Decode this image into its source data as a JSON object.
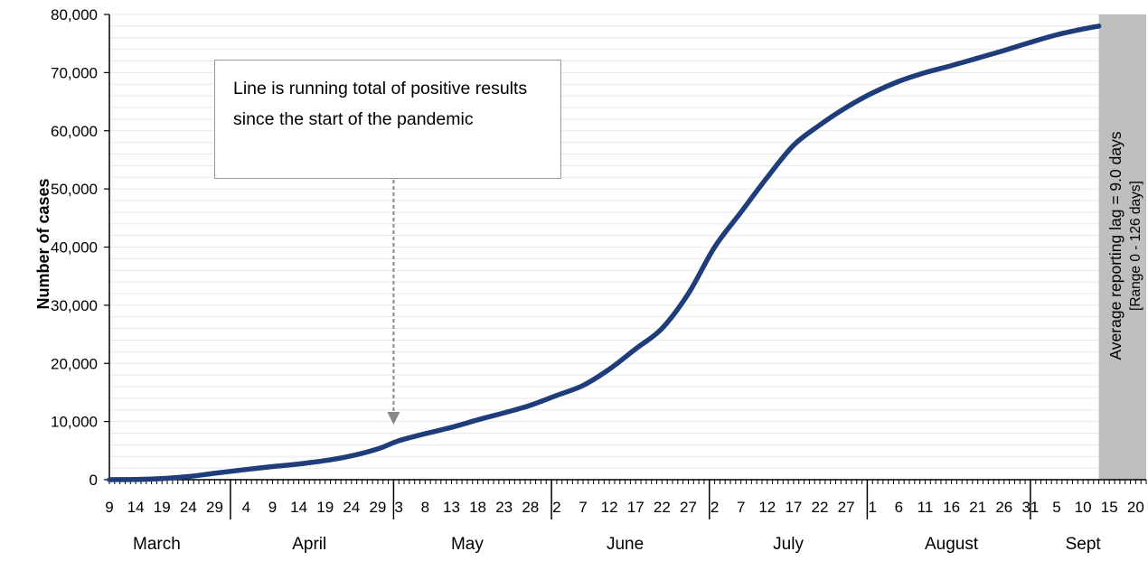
{
  "callout": {
    "text": "Line is running total of positive results since the start of the pandemic"
  },
  "reporting_lag": {
    "line1": "Average reporting lag = 9.0 days",
    "line2": "[Range 0 - 126 days]",
    "band_color": "#bfbfbf"
  },
  "colors": {
    "line": "#1f3d7a",
    "grid": "#e8e8e8",
    "arrow": "#888888"
  },
  "chart_data": {
    "type": "line",
    "title": "",
    "xlabel": "",
    "ylabel": "Number of cases",
    "ylim": [
      0,
      80000
    ],
    "y_ticks": [
      0,
      10000,
      20000,
      30000,
      40000,
      50000,
      60000,
      70000,
      80000
    ],
    "y_tick_labels": [
      "0",
      "10,000",
      "20,000",
      "30,000",
      "40,000",
      "50,000",
      "60,000",
      "70,000",
      "80,000"
    ],
    "x_range": [
      "2020-03-09",
      "2020-09-22"
    ],
    "x_tick_labels": [
      {
        "date": "2020-03-09",
        "label": "9"
      },
      {
        "date": "2020-03-14",
        "label": "14"
      },
      {
        "date": "2020-03-19",
        "label": "19"
      },
      {
        "date": "2020-03-24",
        "label": "24"
      },
      {
        "date": "2020-03-29",
        "label": "29"
      },
      {
        "date": "2020-04-04",
        "label": "4"
      },
      {
        "date": "2020-04-09",
        "label": "9"
      },
      {
        "date": "2020-04-14",
        "label": "14"
      },
      {
        "date": "2020-04-19",
        "label": "19"
      },
      {
        "date": "2020-04-24",
        "label": "24"
      },
      {
        "date": "2020-04-29",
        "label": "29"
      },
      {
        "date": "2020-05-03",
        "label": "3"
      },
      {
        "date": "2020-05-08",
        "label": "8"
      },
      {
        "date": "2020-05-13",
        "label": "13"
      },
      {
        "date": "2020-05-18",
        "label": "18"
      },
      {
        "date": "2020-05-23",
        "label": "23"
      },
      {
        "date": "2020-05-28",
        "label": "28"
      },
      {
        "date": "2020-06-02",
        "label": "2"
      },
      {
        "date": "2020-06-07",
        "label": "7"
      },
      {
        "date": "2020-06-12",
        "label": "12"
      },
      {
        "date": "2020-06-17",
        "label": "17"
      },
      {
        "date": "2020-06-22",
        "label": "22"
      },
      {
        "date": "2020-06-27",
        "label": "27"
      },
      {
        "date": "2020-07-02",
        "label": "2"
      },
      {
        "date": "2020-07-07",
        "label": "7"
      },
      {
        "date": "2020-07-12",
        "label": "12"
      },
      {
        "date": "2020-07-17",
        "label": "17"
      },
      {
        "date": "2020-07-22",
        "label": "22"
      },
      {
        "date": "2020-07-27",
        "label": "27"
      },
      {
        "date": "2020-08-01",
        "label": "1"
      },
      {
        "date": "2020-08-06",
        "label": "6"
      },
      {
        "date": "2020-08-11",
        "label": "11"
      },
      {
        "date": "2020-08-16",
        "label": "16"
      },
      {
        "date": "2020-08-21",
        "label": "21"
      },
      {
        "date": "2020-08-26",
        "label": "26"
      },
      {
        "date": "2020-08-31",
        "label": "31"
      },
      {
        "date": "2020-09-05",
        "label": "5"
      },
      {
        "date": "2020-09-10",
        "label": "10"
      },
      {
        "date": "2020-09-15",
        "label": "15"
      },
      {
        "date": "2020-09-20",
        "label": "20"
      }
    ],
    "month_labels": [
      {
        "label": "March",
        "center": "2020-03-18"
      },
      {
        "label": "April",
        "center": "2020-04-16"
      },
      {
        "label": "May",
        "center": "2020-05-16"
      },
      {
        "label": "June",
        "center": "2020-06-15"
      },
      {
        "label": "July",
        "center": "2020-07-16"
      },
      {
        "label": "August",
        "center": "2020-08-16"
      },
      {
        "label": "Sept",
        "center": "2020-09-10"
      }
    ],
    "month_boundaries": [
      "2020-04-01",
      "2020-05-02",
      "2020-06-01",
      "2020-07-01",
      "2020-07-31",
      "2020-08-31"
    ],
    "lag_band": [
      "2020-09-13",
      "2020-09-22"
    ],
    "annotation_date": "2020-05-02",
    "grid": "horizontal",
    "series": [
      {
        "points": [
          [
            "2020-03-09",
            0
          ],
          [
            "2020-03-14",
            50
          ],
          [
            "2020-03-19",
            200
          ],
          [
            "2020-03-24",
            550
          ],
          [
            "2020-03-29",
            1100
          ],
          [
            "2020-04-04",
            1750
          ],
          [
            "2020-04-09",
            2250
          ],
          [
            "2020-04-14",
            2700
          ],
          [
            "2020-04-19",
            3300
          ],
          [
            "2020-04-24",
            4100
          ],
          [
            "2020-04-29",
            5300
          ],
          [
            "2020-05-03",
            6700
          ],
          [
            "2020-05-08",
            7900
          ],
          [
            "2020-05-13",
            9000
          ],
          [
            "2020-05-18",
            10300
          ],
          [
            "2020-05-23",
            11500
          ],
          [
            "2020-05-28",
            12800
          ],
          [
            "2020-06-02",
            14500
          ],
          [
            "2020-06-07",
            16200
          ],
          [
            "2020-06-12",
            19000
          ],
          [
            "2020-06-17",
            22500
          ],
          [
            "2020-06-22",
            26000
          ],
          [
            "2020-06-27",
            32000
          ],
          [
            "2020-07-02",
            40000
          ],
          [
            "2020-07-07",
            46000
          ],
          [
            "2020-07-12",
            52000
          ],
          [
            "2020-07-17",
            57500
          ],
          [
            "2020-07-22",
            61000
          ],
          [
            "2020-07-27",
            64000
          ],
          [
            "2020-08-01",
            66500
          ],
          [
            "2020-08-06",
            68500
          ],
          [
            "2020-08-11",
            70000
          ],
          [
            "2020-08-16",
            71200
          ],
          [
            "2020-08-21",
            72500
          ],
          [
            "2020-08-26",
            73800
          ],
          [
            "2020-08-31",
            75200
          ],
          [
            "2020-09-05",
            76500
          ],
          [
            "2020-09-10",
            77500
          ],
          [
            "2020-09-13",
            78000
          ]
        ]
      }
    ]
  }
}
